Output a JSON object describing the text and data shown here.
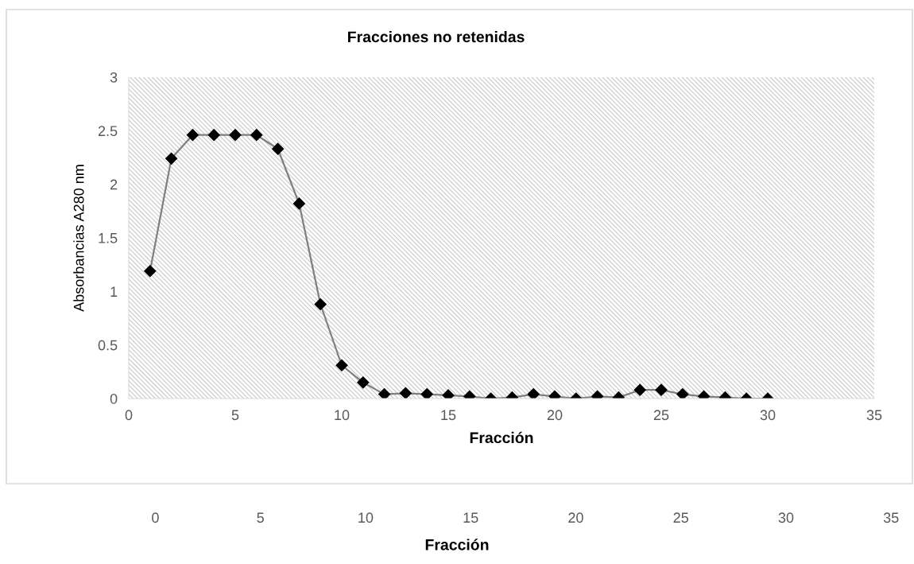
{
  "chart_data": {
    "type": "line",
    "title": "Fracciones no retenidas",
    "xlabel": "Fracción",
    "ylabel": "Absorbancias A280 nm",
    "x": [
      1,
      2,
      3,
      4,
      5,
      6,
      7,
      8,
      9,
      10,
      11,
      12,
      13,
      14,
      15,
      16,
      17,
      18,
      19,
      20,
      21,
      22,
      23,
      24,
      25,
      26,
      27,
      28,
      29,
      30
    ],
    "series": [
      {
        "color": "#000000",
        "values": [
          1.19,
          2.24,
          2.46,
          2.46,
          2.46,
          2.46,
          2.33,
          1.82,
          0.88,
          0.31,
          0.15,
          0.04,
          0.05,
          0.04,
          0.03,
          0.02,
          0.0,
          0.01,
          0.04,
          0.02,
          0.0,
          0.02,
          0.01,
          0.08,
          0.08,
          0.04,
          0.02,
          0.01,
          0.0,
          0.0
        ]
      }
    ],
    "marker": "diamond",
    "line_style": "solid",
    "xlim": [
      0,
      35
    ],
    "xticks": [
      0,
      5,
      10,
      15,
      20,
      25,
      30,
      35
    ],
    "ylim": [
      0,
      3
    ],
    "yticks": [
      0,
      0.5,
      1,
      1.5,
      2,
      2.5,
      3
    ],
    "x2lim": [
      -7.2,
      35.9
    ],
    "x2ticks": [
      0,
      5,
      10,
      15,
      20,
      25,
      30,
      35
    ],
    "x2label": "Fracción"
  }
}
